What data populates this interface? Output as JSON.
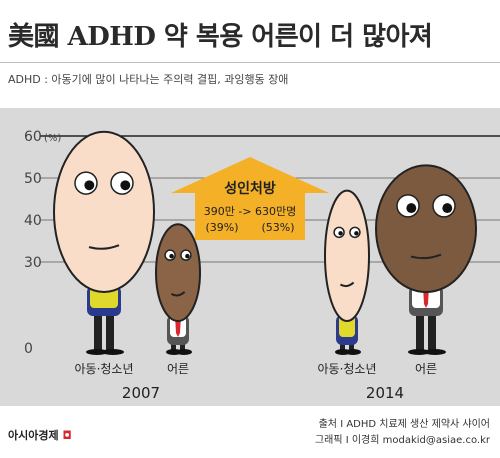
{
  "title": "美國 ADHD 약 복용 어른이 더 많아져",
  "subtitle": "ADHD : 아동기에 많이 나타나는 주의력 결핍, 과잉행동 장애",
  "chart_data": {
    "type": "bar",
    "ylim": [
      0,
      60
    ],
    "yticks": [
      "0",
      "30",
      "40",
      "50",
      "60"
    ],
    "y_unit": "(%)",
    "groups": [
      {
        "year": "2007",
        "categories": [
          "아동·청소년",
          "어른"
        ],
        "values": [
          61,
          39
        ]
      },
      {
        "year": "2014",
        "categories": [
          "아동·청소년",
          "어른"
        ],
        "values": [
          47,
          53
        ]
      }
    ],
    "annotation": {
      "title": "성인처방",
      "change": "390만 -> 630만명",
      "share_before": "(39%)",
      "share_after": "(53%)"
    },
    "colors": {
      "arrow": "#f4b026",
      "child_face": "#f9ddc8",
      "adult_face": "#8b6448",
      "adult_2014_face": "#7b5a40",
      "bg_band": "#d9d9d9"
    }
  },
  "footer": {
    "brand": "아시아경제",
    "source": "출처 I ADHD 치료제 생산 제약사 샤이어",
    "credit": "그래픽 I 이경희 modakid@asiae.co.kr"
  }
}
